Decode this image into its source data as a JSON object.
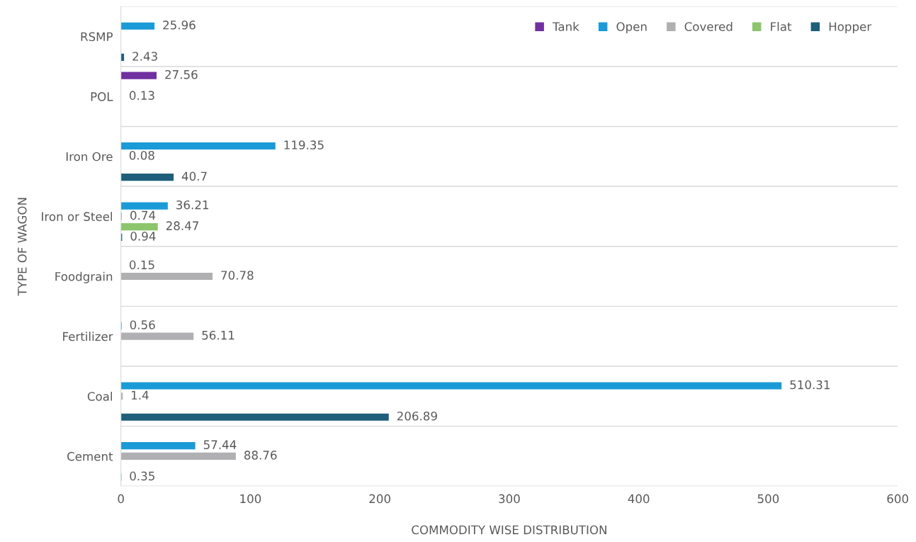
{
  "chart_data": {
    "type": "bar",
    "orientation": "horizontal",
    "xlabel": "COMMODITY WISE DISTRIBUTION",
    "ylabel": "TYPE OF WAGON",
    "categories": [
      "RSMP",
      "POL",
      "Iron Ore",
      "Iron or Steel",
      "Foodgrain",
      "Fertilizer",
      "Coal",
      "Cement"
    ],
    "series": [
      {
        "name": "Tank",
        "color": "#7030a0",
        "values": [
          null,
          27.56,
          null,
          null,
          null,
          null,
          null,
          null
        ]
      },
      {
        "name": "Open",
        "color": "#1a9bd7",
        "values": [
          25.96,
          null,
          119.35,
          36.21,
          0.15,
          0.56,
          510.31,
          57.44
        ]
      },
      {
        "name": "Covered",
        "color": "#b0b0b3",
        "values": [
          null,
          0.13,
          0.08,
          0.74,
          70.78,
          56.11,
          1.4,
          88.76
        ]
      },
      {
        "name": "Flat",
        "color": "#8cc56c",
        "values": [
          null,
          null,
          null,
          28.47,
          null,
          null,
          null,
          null
        ]
      },
      {
        "name": "Hopper",
        "color": "#1f5f7a",
        "values": [
          2.43,
          null,
          40.7,
          0.94,
          null,
          null,
          206.89,
          0.35
        ]
      }
    ],
    "xlim": [
      0,
      600
    ],
    "xticks": [
      0,
      100,
      200,
      300,
      400,
      500,
      600
    ],
    "grid": "y",
    "legend": "top right",
    "data_labels": true
  }
}
